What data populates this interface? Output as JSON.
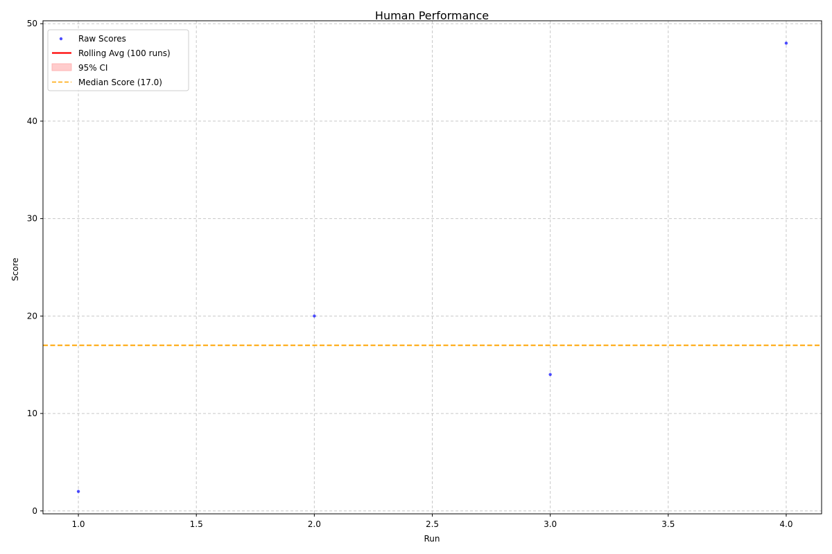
{
  "chart_data": {
    "type": "scatter",
    "title": "Human Performance",
    "xlabel": "Run",
    "ylabel": "Score",
    "xlim": [
      0.85,
      4.15
    ],
    "ylim": [
      -0.3,
      50.3
    ],
    "x_ticks": [
      1.0,
      1.5,
      2.0,
      2.5,
      3.0,
      3.5,
      4.0
    ],
    "x_tick_labels": [
      "1.0",
      "1.5",
      "2.0",
      "2.5",
      "3.0",
      "3.5",
      "4.0"
    ],
    "y_ticks": [
      0,
      10,
      20,
      30,
      40,
      50
    ],
    "y_tick_labels": [
      "0",
      "10",
      "20",
      "30",
      "40",
      "50"
    ],
    "grid": true,
    "legend_position": "top-left",
    "series": [
      {
        "name": "Raw Scores",
        "kind": "scatter",
        "color": "#0000ff",
        "x": [
          1,
          2,
          3,
          4
        ],
        "y": [
          2,
          20,
          14,
          48
        ]
      },
      {
        "name": "Rolling Avg (100 runs)",
        "kind": "line",
        "color": "#ff0000",
        "x": [],
        "y": []
      },
      {
        "name": "95% CI",
        "kind": "band",
        "color": "#ffcccc",
        "x": [],
        "lower": [],
        "upper": []
      },
      {
        "name": "Median Score (17.0)",
        "kind": "hline",
        "color": "#ffa500",
        "value": 17.0
      }
    ]
  }
}
